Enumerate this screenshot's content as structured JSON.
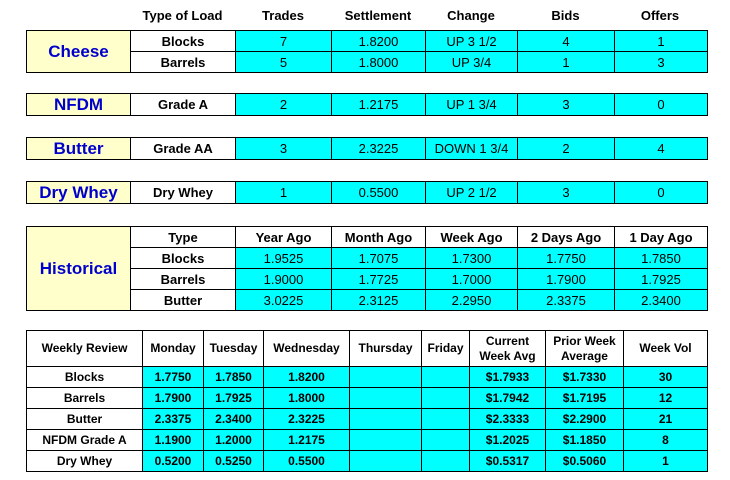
{
  "spot": {
    "headers": [
      "Type of Load",
      "Trades",
      "Settlement",
      "Change",
      "Bids",
      "Offers"
    ],
    "cheese": {
      "label": "Cheese",
      "rows": [
        {
          "type": "Blocks",
          "trades": "7",
          "settlement": "1.8200",
          "change": "UP 3 1/2",
          "bids": "4",
          "offers": "1"
        },
        {
          "type": "Barrels",
          "trades": "5",
          "settlement": "1.8000",
          "change": "UP 3/4",
          "bids": "1",
          "offers": "3"
        }
      ]
    },
    "nfdm": {
      "label": "NFDM",
      "type": "Grade A",
      "trades": "2",
      "settlement": "1.2175",
      "change": "UP 1 3/4",
      "bids": "3",
      "offers": "0"
    },
    "butter": {
      "label": "Butter",
      "type": "Grade AA",
      "trades": "3",
      "settlement": "2.3225",
      "change": "DOWN 1 3/4",
      "bids": "2",
      "offers": "4"
    },
    "drywhey": {
      "label": "Dry Whey",
      "type": "Dry Whey",
      "trades": "1",
      "settlement": "0.5500",
      "change": "UP 2 1/2",
      "bids": "3",
      "offers": "0"
    }
  },
  "historical": {
    "label": "Historical",
    "headers": [
      "Type",
      "Year Ago",
      "Month Ago",
      "Week Ago",
      "2 Days Ago",
      "1 Day Ago"
    ],
    "rows": [
      [
        "Blocks",
        "1.9525",
        "1.7075",
        "1.7300",
        "1.7750",
        "1.7850"
      ],
      [
        "Barrels",
        "1.9000",
        "1.7725",
        "1.7000",
        "1.7900",
        "1.7925"
      ],
      [
        "Butter",
        "3.0225",
        "2.3125",
        "2.2950",
        "2.3375",
        "2.3400"
      ]
    ]
  },
  "weekly": {
    "headers": [
      "Weekly Review",
      "Monday",
      "Tuesday",
      "Wednesday",
      "Thursday",
      "Friday",
      "Current Week Avg",
      "Prior Week Average",
      "Week Vol"
    ],
    "rows": [
      [
        "Blocks",
        "1.7750",
        "1.7850",
        "1.8200",
        "",
        "",
        "$1.7933",
        "$1.7330",
        "30"
      ],
      [
        "Barrels",
        "1.7900",
        "1.7925",
        "1.8000",
        "",
        "",
        "$1.7942",
        "$1.7195",
        "12"
      ],
      [
        "Butter",
        "2.3375",
        "2.3400",
        "2.3225",
        "",
        "",
        "$2.3333",
        "$2.2900",
        "21"
      ],
      [
        "NFDM Grade A",
        "1.1900",
        "1.2000",
        "1.2175",
        "",
        "",
        "$1.2025",
        "$1.1850",
        "8"
      ],
      [
        "Dry Whey",
        "0.5200",
        "0.5250",
        "0.5500",
        "",
        "",
        "$0.5317",
        "$0.5060",
        "1"
      ]
    ]
  }
}
